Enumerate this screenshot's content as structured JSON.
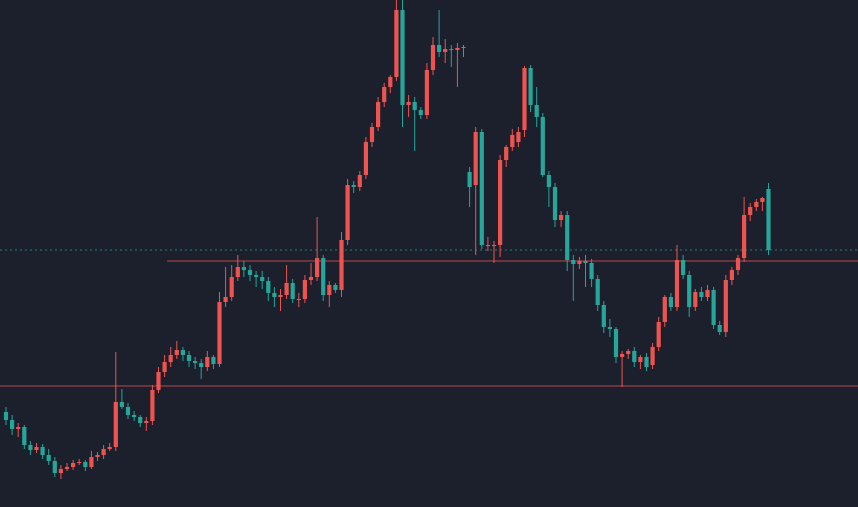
{
  "chart_data": {
    "type": "candlestick",
    "ylim": [
      0,
      507
    ],
    "up_color": "#ef5350",
    "down_color": "#26a69a",
    "levels": [
      246,
      121
    ],
    "level_color": "#c2454d",
    "last_price_line": true,
    "last_price_color": "#26a69a",
    "ohlc": [
      [
        95,
        100,
        82,
        87
      ],
      [
        87,
        92,
        72,
        78
      ],
      [
        78,
        84,
        70,
        80
      ],
      [
        80,
        82,
        58,
        62
      ],
      [
        62,
        66,
        52,
        57
      ],
      [
        57,
        64,
        54,
        60
      ],
      [
        60,
        63,
        48,
        52
      ],
      [
        52,
        58,
        42,
        46
      ],
      [
        46,
        50,
        30,
        34
      ],
      [
        34,
        42,
        28,
        38
      ],
      [
        38,
        44,
        36,
        40
      ],
      [
        40,
        47,
        37,
        44
      ],
      [
        44,
        48,
        42,
        45
      ],
      [
        45,
        47,
        36,
        40
      ],
      [
        40,
        56,
        38,
        50
      ],
      [
        50,
        55,
        46,
        52
      ],
      [
        52,
        62,
        48,
        58
      ],
      [
        58,
        64,
        56,
        60
      ],
      [
        60,
        155,
        56,
        105
      ],
      [
        105,
        118,
        98,
        100
      ],
      [
        100,
        104,
        88,
        92
      ],
      [
        92,
        96,
        86,
        90
      ],
      [
        90,
        92,
        80,
        84
      ],
      [
        84,
        90,
        76,
        86
      ],
      [
        86,
        122,
        82,
        117
      ],
      [
        117,
        140,
        114,
        135
      ],
      [
        135,
        152,
        130,
        145
      ],
      [
        145,
        160,
        140,
        152
      ],
      [
        152,
        166,
        148,
        157
      ],
      [
        157,
        160,
        146,
        152
      ],
      [
        152,
        156,
        140,
        146
      ],
      [
        146,
        150,
        138,
        144
      ],
      [
        144,
        148,
        128,
        140
      ],
      [
        140,
        156,
        136,
        150
      ],
      [
        150,
        152,
        138,
        143
      ],
      [
        143,
        215,
        140,
        205
      ],
      [
        205,
        240,
        200,
        210
      ],
      [
        210,
        242,
        206,
        230
      ],
      [
        230,
        252,
        226,
        240
      ],
      [
        240,
        246,
        230,
        237
      ],
      [
        237,
        242,
        226,
        232
      ],
      [
        232,
        236,
        220,
        230
      ],
      [
        230,
        236,
        218,
        226
      ],
      [
        226,
        230,
        206,
        214
      ],
      [
        214,
        220,
        200,
        210
      ],
      [
        210,
        218,
        196,
        212
      ],
      [
        212,
        242,
        208,
        224
      ],
      [
        224,
        228,
        204,
        208
      ],
      [
        208,
        214,
        200,
        208
      ],
      [
        208,
        232,
        204,
        227
      ],
      [
        227,
        244,
        222,
        230
      ],
      [
        230,
        290,
        226,
        249
      ],
      [
        249,
        252,
        206,
        212
      ],
      [
        212,
        226,
        200,
        222
      ],
      [
        222,
        224,
        214,
        217
      ],
      [
        217,
        275,
        210,
        267
      ],
      [
        267,
        328,
        262,
        322
      ],
      [
        322,
        326,
        314,
        320
      ],
      [
        320,
        336,
        316,
        332
      ],
      [
        332,
        370,
        328,
        365
      ],
      [
        365,
        384,
        360,
        380
      ],
      [
        380,
        410,
        376,
        405
      ],
      [
        405,
        424,
        400,
        420
      ],
      [
        420,
        432,
        414,
        430
      ],
      [
        430,
        507,
        426,
        497
      ],
      [
        497,
        507,
        380,
        402
      ],
      [
        402,
        412,
        390,
        405
      ],
      [
        405,
        410,
        356,
        397
      ],
      [
        397,
        400,
        388,
        392
      ],
      [
        392,
        444,
        388,
        437
      ],
      [
        437,
        470,
        432,
        462
      ],
      [
        462,
        497,
        450,
        455
      ],
      [
        455,
        468,
        444,
        458
      ],
      [
        458,
        462,
        440,
        457
      ],
      [
        457,
        464,
        420,
        459
      ],
      [
        459,
        462,
        450,
        460
      ],
      [
        335,
        340,
        300,
        320
      ],
      [
        322,
        380,
        252,
        375
      ],
      [
        375,
        378,
        258,
        262
      ],
      [
        262,
        270,
        256,
        262
      ],
      [
        262,
        266,
        244,
        262
      ],
      [
        262,
        352,
        250,
        347
      ],
      [
        347,
        362,
        340,
        360
      ],
      [
        360,
        378,
        356,
        372
      ],
      [
        365,
        380,
        360,
        375
      ],
      [
        377,
        441,
        370,
        439
      ],
      [
        439,
        442,
        395,
        402
      ],
      [
        402,
        420,
        380,
        390
      ],
      [
        390,
        394,
        330,
        332
      ],
      [
        332,
        336,
        300,
        320
      ],
      [
        320,
        324,
        280,
        287
      ],
      [
        287,
        296,
        280,
        292
      ],
      [
        292,
        296,
        236,
        247
      ],
      [
        247,
        252,
        206,
        243
      ],
      [
        243,
        250,
        238,
        246
      ],
      [
        246,
        252,
        220,
        244
      ],
      [
        244,
        248,
        220,
        228
      ],
      [
        228,
        232,
        196,
        202
      ],
      [
        202,
        206,
        174,
        180
      ],
      [
        180,
        188,
        170,
        178
      ],
      [
        178,
        180,
        144,
        150
      ],
      [
        150,
        156,
        120,
        153
      ],
      [
        153,
        158,
        148,
        156
      ],
      [
        156,
        160,
        140,
        145
      ],
      [
        145,
        152,
        138,
        150
      ],
      [
        150,
        154,
        136,
        140
      ],
      [
        142,
        164,
        138,
        160
      ],
      [
        160,
        190,
        156,
        185
      ],
      [
        185,
        212,
        180,
        210
      ],
      [
        210,
        214,
        196,
        200
      ],
      [
        200,
        262,
        196,
        247
      ],
      [
        247,
        252,
        228,
        232
      ],
      [
        232,
        236,
        190,
        200
      ],
      [
        200,
        218,
        196,
        215
      ],
      [
        215,
        220,
        206,
        210
      ],
      [
        210,
        222,
        206,
        217
      ],
      [
        217,
        220,
        178,
        182
      ],
      [
        182,
        186,
        172,
        175
      ],
      [
        175,
        232,
        170,
        227
      ],
      [
        227,
        240,
        222,
        237
      ],
      [
        237,
        252,
        232,
        249
      ],
      [
        249,
        310,
        245,
        292
      ],
      [
        292,
        304,
        286,
        300
      ],
      [
        300,
        308,
        296,
        305
      ],
      [
        305,
        310,
        296,
        309
      ],
      [
        318,
        324,
        252,
        257
      ]
    ]
  }
}
